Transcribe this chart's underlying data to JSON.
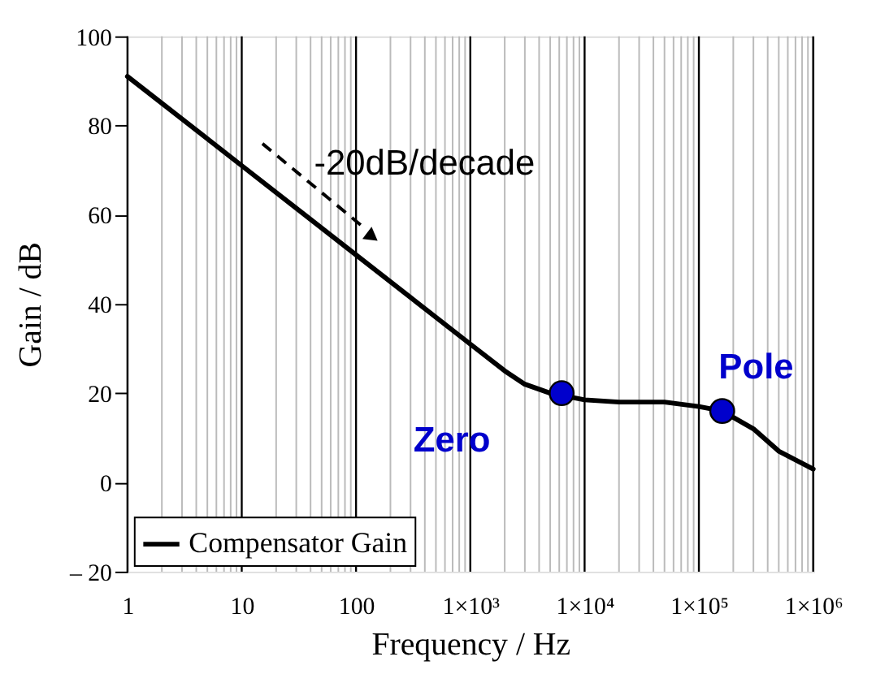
{
  "chart_data": {
    "type": "line",
    "xlabel": "Frequency / Hz",
    "ylabel": "Gain / dB",
    "log": "x",
    "grid": "x",
    "legend": "bottom left",
    "line_style": "solid",
    "marker": "none",
    "xlim": [
      1,
      1000000
    ],
    "ylim": [
      -20,
      100
    ],
    "xticks": [
      1,
      10,
      100,
      {
        "value": 1000,
        "label": "1×10³"
      },
      {
        "value": 10000,
        "label": "1×10⁴"
      },
      {
        "value": 100000,
        "label": "1×10⁵"
      },
      {
        "value": 1000000,
        "label": "1×10⁶"
      }
    ],
    "yticks": [
      {
        "value": -20,
        "label": "– 20"
      },
      0,
      20,
      40,
      60,
      80,
      100
    ],
    "series": [
      {
        "name": "Compensator Gain",
        "color": "#000000",
        "x": [
          1,
          10,
          100,
          1000,
          2000,
          3000,
          5000,
          10000,
          20000,
          50000,
          100000,
          160000,
          300000,
          500000,
          1000000
        ],
        "values": [
          91,
          71,
          51,
          31,
          25,
          22,
          20,
          18.5,
          18,
          18,
          17,
          16,
          12,
          7,
          3
        ]
      },
      {
        "type": "scatter",
        "marker": "circle",
        "color": "#0000cc",
        "x": [
          6300,
          160000
        ],
        "values": [
          20,
          16
        ]
      }
    ],
    "annotations": [
      {
        "text": "-20dB/decade",
        "x": 100,
        "y": 51
      },
      {
        "text": "Zero",
        "x": 6300,
        "y": 20
      },
      {
        "text": "Pole",
        "x": 160000,
        "y": 16
      }
    ]
  }
}
